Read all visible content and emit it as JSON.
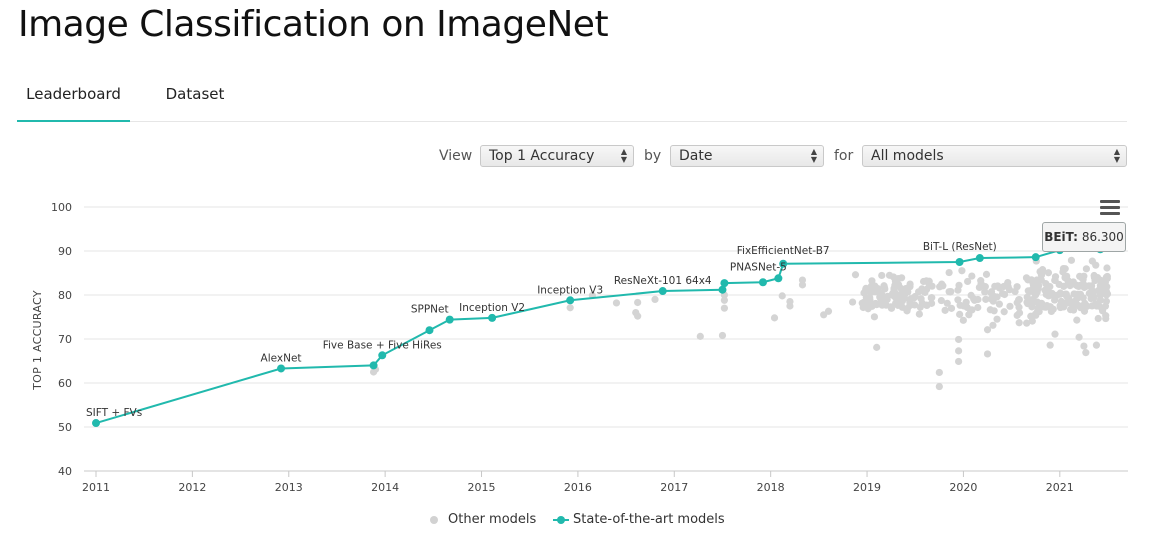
{
  "page": {
    "title": "Image Classification on ImageNet"
  },
  "tabs": [
    {
      "label": "Leaderboard",
      "active": true
    },
    {
      "label": "Dataset",
      "active": false
    }
  ],
  "controls": {
    "view_label": "View",
    "view_value": "Top 1 Accuracy",
    "by_label": "by",
    "by_value": "Date",
    "for_label": "for",
    "for_value": "All models"
  },
  "tooltip": {
    "name": "BEiT:",
    "value": "86.300"
  },
  "legend": {
    "other": "Other models",
    "sota": "State-of-the-art models"
  },
  "menu_icon": "hamburger-menu-icon",
  "colors": {
    "sota": "#21b9ad",
    "other": "#d4d4d4",
    "tab_underline": "#21b9ad"
  },
  "chart_data": {
    "type": "scatter",
    "ylabel": "TOP 1 ACCURACY",
    "xlabel": "",
    "ylim": [
      40,
      100
    ],
    "xlim": [
      2011,
      2021.5
    ],
    "yticks": [
      40,
      50,
      60,
      70,
      80,
      90,
      100
    ],
    "xticks": [
      "2011",
      "2012",
      "2013",
      "2014",
      "2015",
      "2016",
      "2017",
      "2018",
      "2019",
      "2020",
      "2021"
    ],
    "grid": true,
    "legend_position": "bottom",
    "series": [
      {
        "name": "State-of-the-art models",
        "line": true,
        "points": [
          {
            "x": 2011.0,
            "y": 50.9,
            "label": "SIFT + FVs"
          },
          {
            "x": 2012.92,
            "y": 63.3,
            "label": "AlexNet"
          },
          {
            "x": 2013.88,
            "y": 64.0,
            "label": ""
          },
          {
            "x": 2013.97,
            "y": 66.3,
            "label": "Five Base + Five HiRes"
          },
          {
            "x": 2014.46,
            "y": 72.0,
            "label": ""
          },
          {
            "x": 2014.67,
            "y": 74.4,
            "label": "SPPNet"
          },
          {
            "x": 2015.11,
            "y": 74.8,
            "label": "Inception V2"
          },
          {
            "x": 2015.92,
            "y": 78.8,
            "label": "Inception V3"
          },
          {
            "x": 2016.88,
            "y": 80.9,
            "label": "ResNeXt-101 64x4"
          },
          {
            "x": 2017.5,
            "y": 81.2,
            "label": ""
          },
          {
            "x": 2017.52,
            "y": 82.7,
            "label": ""
          },
          {
            "x": 2017.92,
            "y": 82.9,
            "label": ""
          },
          {
            "x": 2018.08,
            "y": 83.8,
            "label": "PNASNet-5"
          },
          {
            "x": 2018.13,
            "y": 87.1,
            "label": "FixEfficientNet-B7"
          },
          {
            "x": 2019.96,
            "y": 87.5,
            "label": ""
          },
          {
            "x": 2020.17,
            "y": 88.4,
            "label": "BiT-L (ResNet)"
          },
          {
            "x": 2020.75,
            "y": 88.6,
            "label": ""
          },
          {
            "x": 2021.0,
            "y": 90.2,
            "label": ""
          },
          {
            "x": 2021.42,
            "y": 90.4,
            "label": ""
          }
        ]
      },
      {
        "name": "Other models",
        "line": false,
        "points": [
          {
            "x": 2013.88,
            "y": 62.5
          },
          {
            "x": 2013.9,
            "y": 63.1
          },
          {
            "x": 2015.92,
            "y": 77.1
          },
          {
            "x": 2016.15,
            "y": 79.9
          },
          {
            "x": 2016.4,
            "y": 78.2
          },
          {
            "x": 2016.6,
            "y": 76.0
          },
          {
            "x": 2016.62,
            "y": 78.3
          },
          {
            "x": 2016.62,
            "y": 75.2
          },
          {
            "x": 2016.8,
            "y": 79.0
          },
          {
            "x": 2017.27,
            "y": 70.6
          },
          {
            "x": 2017.5,
            "y": 70.8
          },
          {
            "x": 2017.52,
            "y": 77.0
          },
          {
            "x": 2017.52,
            "y": 78.8
          },
          {
            "x": 2017.52,
            "y": 80.0
          },
          {
            "x": 2018.04,
            "y": 74.8
          },
          {
            "x": 2018.12,
            "y": 79.8
          },
          {
            "x": 2018.2,
            "y": 78.5
          },
          {
            "x": 2018.2,
            "y": 77.5
          },
          {
            "x": 2018.33,
            "y": 83.4
          },
          {
            "x": 2018.33,
            "y": 82.3
          },
          {
            "x": 2018.55,
            "y": 75.5
          },
          {
            "x": 2018.6,
            "y": 76.3
          },
          {
            "x": 2018.88,
            "y": 84.6
          },
          {
            "x": 2018.85,
            "y": 78.4
          },
          {
            "x": 2019.1,
            "y": 68.1
          },
          {
            "x": 2019.75,
            "y": 59.2
          },
          {
            "x": 2019.75,
            "y": 62.4
          },
          {
            "x": 2019.95,
            "y": 64.9
          },
          {
            "x": 2019.95,
            "y": 67.3
          },
          {
            "x": 2019.95,
            "y": 69.9
          },
          {
            "x": 2020.25,
            "y": 66.6
          },
          {
            "x": 2020.25,
            "y": 72.1
          },
          {
            "x": 2020.9,
            "y": 68.6
          },
          {
            "x": 2020.95,
            "y": 71.1
          },
          {
            "x": 2021.27,
            "y": 66.9
          },
          {
            "x": 2021.25,
            "y": 68.4
          },
          {
            "x": 2021.38,
            "y": 68.6
          },
          {
            "x": 2021.2,
            "y": 70.4
          }
        ],
        "cluster_note_ranges": [
          {
            "x": [
              2018.95,
              2019.7
            ],
            "y": [
              74.5,
              86.0
            ],
            "count": 110
          },
          {
            "x": [
              2019.75,
              2020.6
            ],
            "y": [
              72.0,
              88.0
            ],
            "count": 70
          },
          {
            "x": [
              2020.65,
              2021.5
            ],
            "y": [
              72.0,
              90.0
            ],
            "count": 170
          }
        ]
      }
    ]
  }
}
